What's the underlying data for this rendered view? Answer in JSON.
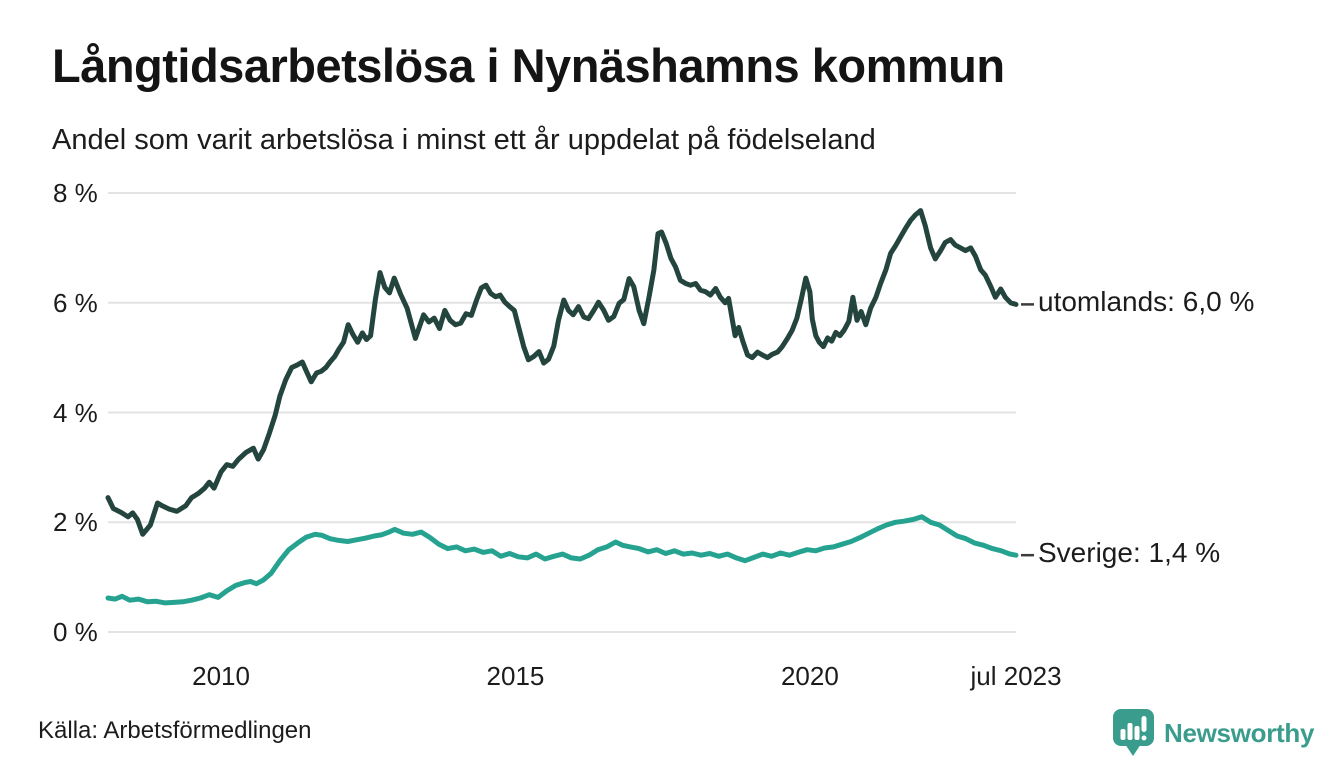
{
  "header": {
    "title": "Långtidsarbetslösa i Nynäshamns kommun",
    "subtitle": "Andel som varit arbetslösa i minst ett år uppdelat på födelseland"
  },
  "footer": {
    "source": "Källa: Arbetsförmedlingen",
    "brand": "Newsworthy"
  },
  "colors": {
    "utomlands_line": "#24453e",
    "sverige_line": "#26a390",
    "gridline": "#e3e3e3",
    "text": "#1c1c1c",
    "label_dash": "#3c3c3c",
    "brand_teal": "#3a9c8c",
    "background": "#ffffff"
  },
  "chart_data": {
    "type": "line",
    "title": "Långtidsarbetslösa i Nynäshamns kommun",
    "subtitle": "Andel som varit arbetslösa i minst ett år uppdelat på födelseland",
    "x_unit": "decimal_year",
    "xlim": [
      2008.08,
      2023.5
    ],
    "ylim": [
      0,
      8
    ],
    "grid": "horizontal",
    "legend_position": "right-end-labels",
    "y_ticks": [
      {
        "v": 0,
        "label": "0 %"
      },
      {
        "v": 2,
        "label": "2 %"
      },
      {
        "v": 4,
        "label": "4 %"
      },
      {
        "v": 6,
        "label": "6 %"
      },
      {
        "v": 8,
        "label": "8 %"
      }
    ],
    "x_ticks": [
      {
        "t": 2010,
        "label": "2010"
      },
      {
        "t": 2015,
        "label": "2015"
      },
      {
        "t": 2020,
        "label": "2020"
      },
      {
        "t": 2023.5,
        "label": "jul 2023"
      }
    ],
    "series": [
      {
        "name": "utomlands",
        "end_label": "utomlands: 6,0 %",
        "end_value_text": "6,0 %",
        "color": "#24453e",
        "points": [
          [
            2008.08,
            2.45
          ],
          [
            2008.17,
            2.25
          ],
          [
            2008.3,
            2.18
          ],
          [
            2008.42,
            2.1
          ],
          [
            2008.5,
            2.17
          ],
          [
            2008.58,
            2.05
          ],
          [
            2008.67,
            1.78
          ],
          [
            2008.8,
            1.95
          ],
          [
            2008.92,
            2.35
          ],
          [
            2009.0,
            2.3
          ],
          [
            2009.12,
            2.24
          ],
          [
            2009.25,
            2.2
          ],
          [
            2009.4,
            2.3
          ],
          [
            2009.5,
            2.45
          ],
          [
            2009.62,
            2.53
          ],
          [
            2009.72,
            2.62
          ],
          [
            2009.8,
            2.73
          ],
          [
            2009.88,
            2.62
          ],
          [
            2010.0,
            2.92
          ],
          [
            2010.1,
            3.05
          ],
          [
            2010.2,
            3.02
          ],
          [
            2010.3,
            3.15
          ],
          [
            2010.42,
            3.27
          ],
          [
            2010.55,
            3.35
          ],
          [
            2010.63,
            3.15
          ],
          [
            2010.72,
            3.32
          ],
          [
            2010.82,
            3.62
          ],
          [
            2010.92,
            3.95
          ],
          [
            2011.0,
            4.3
          ],
          [
            2011.1,
            4.6
          ],
          [
            2011.2,
            4.82
          ],
          [
            2011.3,
            4.87
          ],
          [
            2011.38,
            4.92
          ],
          [
            2011.45,
            4.75
          ],
          [
            2011.53,
            4.56
          ],
          [
            2011.62,
            4.72
          ],
          [
            2011.7,
            4.75
          ],
          [
            2011.78,
            4.82
          ],
          [
            2011.85,
            4.92
          ],
          [
            2011.93,
            5.02
          ],
          [
            2012.0,
            5.15
          ],
          [
            2012.08,
            5.28
          ],
          [
            2012.16,
            5.6
          ],
          [
            2012.24,
            5.42
          ],
          [
            2012.32,
            5.28
          ],
          [
            2012.4,
            5.45
          ],
          [
            2012.47,
            5.33
          ],
          [
            2012.54,
            5.4
          ],
          [
            2012.62,
            6.05
          ],
          [
            2012.7,
            6.55
          ],
          [
            2012.78,
            6.28
          ],
          [
            2012.86,
            6.18
          ],
          [
            2012.94,
            6.45
          ],
          [
            2013.05,
            6.15
          ],
          [
            2013.16,
            5.9
          ],
          [
            2013.3,
            5.35
          ],
          [
            2013.44,
            5.78
          ],
          [
            2013.53,
            5.65
          ],
          [
            2013.62,
            5.72
          ],
          [
            2013.71,
            5.53
          ],
          [
            2013.8,
            5.86
          ],
          [
            2013.89,
            5.68
          ],
          [
            2013.98,
            5.6
          ],
          [
            2014.07,
            5.63
          ],
          [
            2014.16,
            5.8
          ],
          [
            2014.25,
            5.77
          ],
          [
            2014.34,
            6.05
          ],
          [
            2014.42,
            6.27
          ],
          [
            2014.5,
            6.32
          ],
          [
            2014.58,
            6.17
          ],
          [
            2014.66,
            6.11
          ],
          [
            2014.74,
            6.14
          ],
          [
            2014.82,
            6.01
          ],
          [
            2014.9,
            5.93
          ],
          [
            2014.98,
            5.86
          ],
          [
            2015.06,
            5.53
          ],
          [
            2015.14,
            5.2
          ],
          [
            2015.22,
            4.96
          ],
          [
            2015.31,
            5.02
          ],
          [
            2015.4,
            5.11
          ],
          [
            2015.48,
            4.9
          ],
          [
            2015.56,
            4.97
          ],
          [
            2015.65,
            5.21
          ],
          [
            2015.73,
            5.68
          ],
          [
            2015.82,
            6.05
          ],
          [
            2015.9,
            5.86
          ],
          [
            2015.98,
            5.78
          ],
          [
            2016.07,
            5.93
          ],
          [
            2016.16,
            5.74
          ],
          [
            2016.24,
            5.71
          ],
          [
            2016.33,
            5.86
          ],
          [
            2016.41,
            6.01
          ],
          [
            2016.5,
            5.86
          ],
          [
            2016.58,
            5.68
          ],
          [
            2016.67,
            5.75
          ],
          [
            2016.76,
            5.99
          ],
          [
            2016.84,
            6.06
          ],
          [
            2016.93,
            6.44
          ],
          [
            2017.01,
            6.29
          ],
          [
            2017.1,
            5.86
          ],
          [
            2017.18,
            5.62
          ],
          [
            2017.27,
            6.11
          ],
          [
            2017.35,
            6.6
          ],
          [
            2017.42,
            7.26
          ],
          [
            2017.48,
            7.29
          ],
          [
            2017.56,
            7.08
          ],
          [
            2017.64,
            6.81
          ],
          [
            2017.72,
            6.65
          ],
          [
            2017.8,
            6.41
          ],
          [
            2017.89,
            6.35
          ],
          [
            2017.97,
            6.32
          ],
          [
            2018.06,
            6.35
          ],
          [
            2018.14,
            6.23
          ],
          [
            2018.23,
            6.2
          ],
          [
            2018.31,
            6.14
          ],
          [
            2018.4,
            6.26
          ],
          [
            2018.48,
            6.1
          ],
          [
            2018.56,
            6.0
          ],
          [
            2018.62,
            6.08
          ],
          [
            2018.73,
            5.4
          ],
          [
            2018.79,
            5.55
          ],
          [
            2018.86,
            5.3
          ],
          [
            2018.94,
            5.05
          ],
          [
            2019.02,
            5.0
          ],
          [
            2019.11,
            5.1
          ],
          [
            2019.19,
            5.05
          ],
          [
            2019.28,
            5.0
          ],
          [
            2019.36,
            5.06
          ],
          [
            2019.45,
            5.1
          ],
          [
            2019.53,
            5.2
          ],
          [
            2019.62,
            5.35
          ],
          [
            2019.7,
            5.5
          ],
          [
            2019.78,
            5.72
          ],
          [
            2019.86,
            6.1
          ],
          [
            2019.93,
            6.45
          ],
          [
            2020.0,
            6.2
          ],
          [
            2020.04,
            5.7
          ],
          [
            2020.1,
            5.4
          ],
          [
            2020.16,
            5.28
          ],
          [
            2020.23,
            5.2
          ],
          [
            2020.3,
            5.36
          ],
          [
            2020.37,
            5.3
          ],
          [
            2020.44,
            5.46
          ],
          [
            2020.51,
            5.4
          ],
          [
            2020.58,
            5.5
          ],
          [
            2020.66,
            5.66
          ],
          [
            2020.73,
            6.1
          ],
          [
            2020.8,
            5.68
          ],
          [
            2020.87,
            5.84
          ],
          [
            2020.95,
            5.6
          ],
          [
            2021.03,
            5.9
          ],
          [
            2021.12,
            6.1
          ],
          [
            2021.2,
            6.35
          ],
          [
            2021.29,
            6.6
          ],
          [
            2021.37,
            6.9
          ],
          [
            2021.46,
            7.05
          ],
          [
            2021.54,
            7.2
          ],
          [
            2021.62,
            7.35
          ],
          [
            2021.71,
            7.5
          ],
          [
            2021.79,
            7.6
          ],
          [
            2021.88,
            7.68
          ],
          [
            2021.96,
            7.4
          ],
          [
            2022.05,
            7.0
          ],
          [
            2022.13,
            6.8
          ],
          [
            2022.22,
            6.95
          ],
          [
            2022.3,
            7.1
          ],
          [
            2022.39,
            7.15
          ],
          [
            2022.47,
            7.05
          ],
          [
            2022.56,
            7.0
          ],
          [
            2022.64,
            6.95
          ],
          [
            2022.73,
            7.0
          ],
          [
            2022.81,
            6.85
          ],
          [
            2022.9,
            6.6
          ],
          [
            2022.98,
            6.5
          ],
          [
            2023.07,
            6.3
          ],
          [
            2023.15,
            6.1
          ],
          [
            2023.24,
            6.25
          ],
          [
            2023.32,
            6.1
          ],
          [
            2023.41,
            6.0
          ],
          [
            2023.5,
            5.97
          ]
        ]
      },
      {
        "name": "Sverige",
        "end_label": "Sverige: 1,4 %",
        "end_value_text": "1,4 %",
        "color": "#26a390",
        "points": [
          [
            2008.08,
            0.62
          ],
          [
            2008.2,
            0.6
          ],
          [
            2008.32,
            0.65
          ],
          [
            2008.45,
            0.58
          ],
          [
            2008.6,
            0.6
          ],
          [
            2008.75,
            0.55
          ],
          [
            2008.9,
            0.56
          ],
          [
            2009.05,
            0.53
          ],
          [
            2009.2,
            0.54
          ],
          [
            2009.35,
            0.55
          ],
          [
            2009.5,
            0.58
          ],
          [
            2009.65,
            0.62
          ],
          [
            2009.8,
            0.68
          ],
          [
            2009.95,
            0.63
          ],
          [
            2010.1,
            0.75
          ],
          [
            2010.25,
            0.85
          ],
          [
            2010.4,
            0.9
          ],
          [
            2010.5,
            0.92
          ],
          [
            2010.6,
            0.88
          ],
          [
            2010.72,
            0.95
          ],
          [
            2010.85,
            1.07
          ],
          [
            2011.0,
            1.3
          ],
          [
            2011.15,
            1.5
          ],
          [
            2011.3,
            1.62
          ],
          [
            2011.45,
            1.73
          ],
          [
            2011.6,
            1.78
          ],
          [
            2011.72,
            1.76
          ],
          [
            2011.85,
            1.7
          ],
          [
            2012.0,
            1.67
          ],
          [
            2012.15,
            1.65
          ],
          [
            2012.3,
            1.68
          ],
          [
            2012.45,
            1.71
          ],
          [
            2012.6,
            1.75
          ],
          [
            2012.72,
            1.77
          ],
          [
            2012.85,
            1.82
          ],
          [
            2012.95,
            1.87
          ],
          [
            2013.1,
            1.8
          ],
          [
            2013.25,
            1.78
          ],
          [
            2013.4,
            1.82
          ],
          [
            2013.55,
            1.72
          ],
          [
            2013.7,
            1.6
          ],
          [
            2013.85,
            1.52
          ],
          [
            2014.0,
            1.55
          ],
          [
            2014.15,
            1.48
          ],
          [
            2014.3,
            1.51
          ],
          [
            2014.45,
            1.45
          ],
          [
            2014.6,
            1.48
          ],
          [
            2014.75,
            1.38
          ],
          [
            2014.9,
            1.43
          ],
          [
            2015.05,
            1.37
          ],
          [
            2015.2,
            1.35
          ],
          [
            2015.35,
            1.42
          ],
          [
            2015.5,
            1.33
          ],
          [
            2015.65,
            1.38
          ],
          [
            2015.8,
            1.42
          ],
          [
            2015.95,
            1.35
          ],
          [
            2016.1,
            1.33
          ],
          [
            2016.25,
            1.4
          ],
          [
            2016.4,
            1.5
          ],
          [
            2016.55,
            1.55
          ],
          [
            2016.7,
            1.64
          ],
          [
            2016.82,
            1.58
          ],
          [
            2016.95,
            1.55
          ],
          [
            2017.1,
            1.52
          ],
          [
            2017.25,
            1.46
          ],
          [
            2017.4,
            1.5
          ],
          [
            2017.55,
            1.43
          ],
          [
            2017.7,
            1.48
          ],
          [
            2017.85,
            1.42
          ],
          [
            2018.0,
            1.44
          ],
          [
            2018.15,
            1.4
          ],
          [
            2018.3,
            1.43
          ],
          [
            2018.45,
            1.38
          ],
          [
            2018.6,
            1.42
          ],
          [
            2018.75,
            1.35
          ],
          [
            2018.9,
            1.3
          ],
          [
            2019.05,
            1.36
          ],
          [
            2019.2,
            1.42
          ],
          [
            2019.35,
            1.38
          ],
          [
            2019.5,
            1.44
          ],
          [
            2019.65,
            1.4
          ],
          [
            2019.8,
            1.45
          ],
          [
            2019.95,
            1.5
          ],
          [
            2020.1,
            1.48
          ],
          [
            2020.25,
            1.53
          ],
          [
            2020.4,
            1.55
          ],
          [
            2020.55,
            1.6
          ],
          [
            2020.7,
            1.65
          ],
          [
            2020.85,
            1.72
          ],
          [
            2021.0,
            1.8
          ],
          [
            2021.15,
            1.88
          ],
          [
            2021.3,
            1.95
          ],
          [
            2021.45,
            2.0
          ],
          [
            2021.6,
            2.02
          ],
          [
            2021.75,
            2.05
          ],
          [
            2021.9,
            2.1
          ],
          [
            2022.05,
            2.0
          ],
          [
            2022.2,
            1.95
          ],
          [
            2022.35,
            1.85
          ],
          [
            2022.5,
            1.75
          ],
          [
            2022.65,
            1.7
          ],
          [
            2022.8,
            1.62
          ],
          [
            2022.95,
            1.58
          ],
          [
            2023.1,
            1.52
          ],
          [
            2023.25,
            1.48
          ],
          [
            2023.4,
            1.42
          ],
          [
            2023.5,
            1.4
          ]
        ]
      }
    ]
  }
}
